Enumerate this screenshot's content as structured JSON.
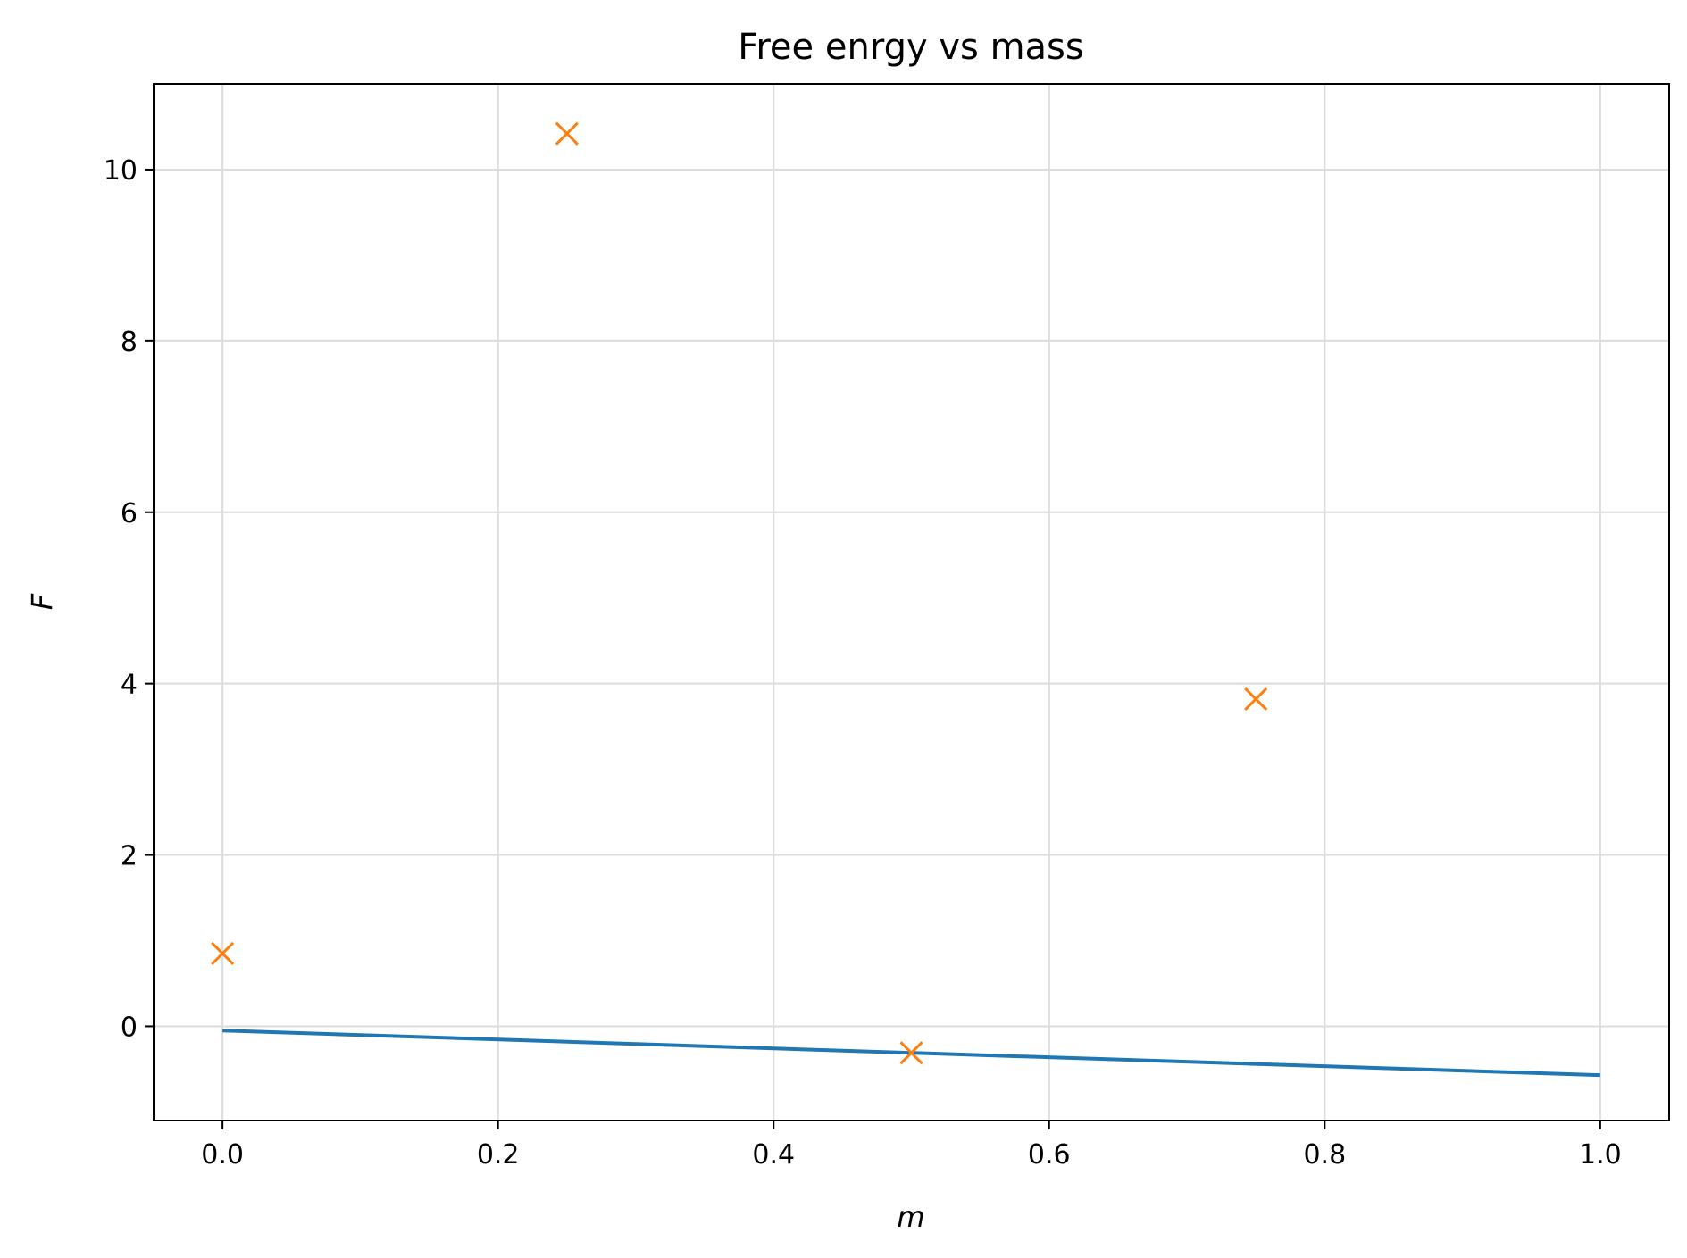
{
  "chart_data": {
    "type": "scatter",
    "title": "Free enrgy vs mass",
    "xlabel": "m",
    "ylabel": "F",
    "xlim": [
      -0.05,
      1.05
    ],
    "ylim": [
      -1.1,
      11.0
    ],
    "x_ticks": [
      0.0,
      0.2,
      0.4,
      0.6,
      0.8,
      1.0
    ],
    "x_tick_labels": [
      "0.0",
      "0.2",
      "0.4",
      "0.6",
      "0.8",
      "1.0"
    ],
    "y_ticks": [
      0,
      2,
      4,
      6,
      8,
      10
    ],
    "y_tick_labels": [
      "0",
      "2",
      "4",
      "6",
      "8",
      "10"
    ],
    "grid": true,
    "series": [
      {
        "type": "line",
        "color": "#1f77b4",
        "x": [
          0.0,
          1.0
        ],
        "y": [
          -0.05,
          -0.57
        ]
      },
      {
        "type": "scatter",
        "marker": "x",
        "color": "#ff7f0e",
        "x": [
          0.0,
          0.25,
          0.5,
          0.75
        ],
        "y": [
          0.85,
          10.42,
          -0.31,
          3.82
        ]
      }
    ]
  }
}
